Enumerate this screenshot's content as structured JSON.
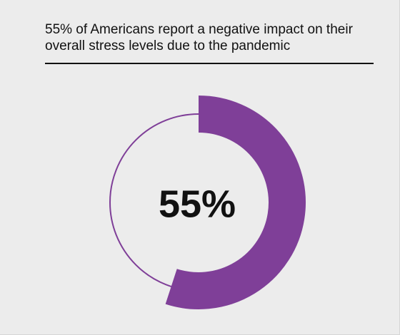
{
  "chart_data": {
    "type": "gauge",
    "title": "55% of Americans report a negative impact on their overall stress levels due to the pandemic",
    "value": 55,
    "value_label": "55%",
    "range": [
      0,
      100
    ],
    "color": "#7f3f98"
  }
}
